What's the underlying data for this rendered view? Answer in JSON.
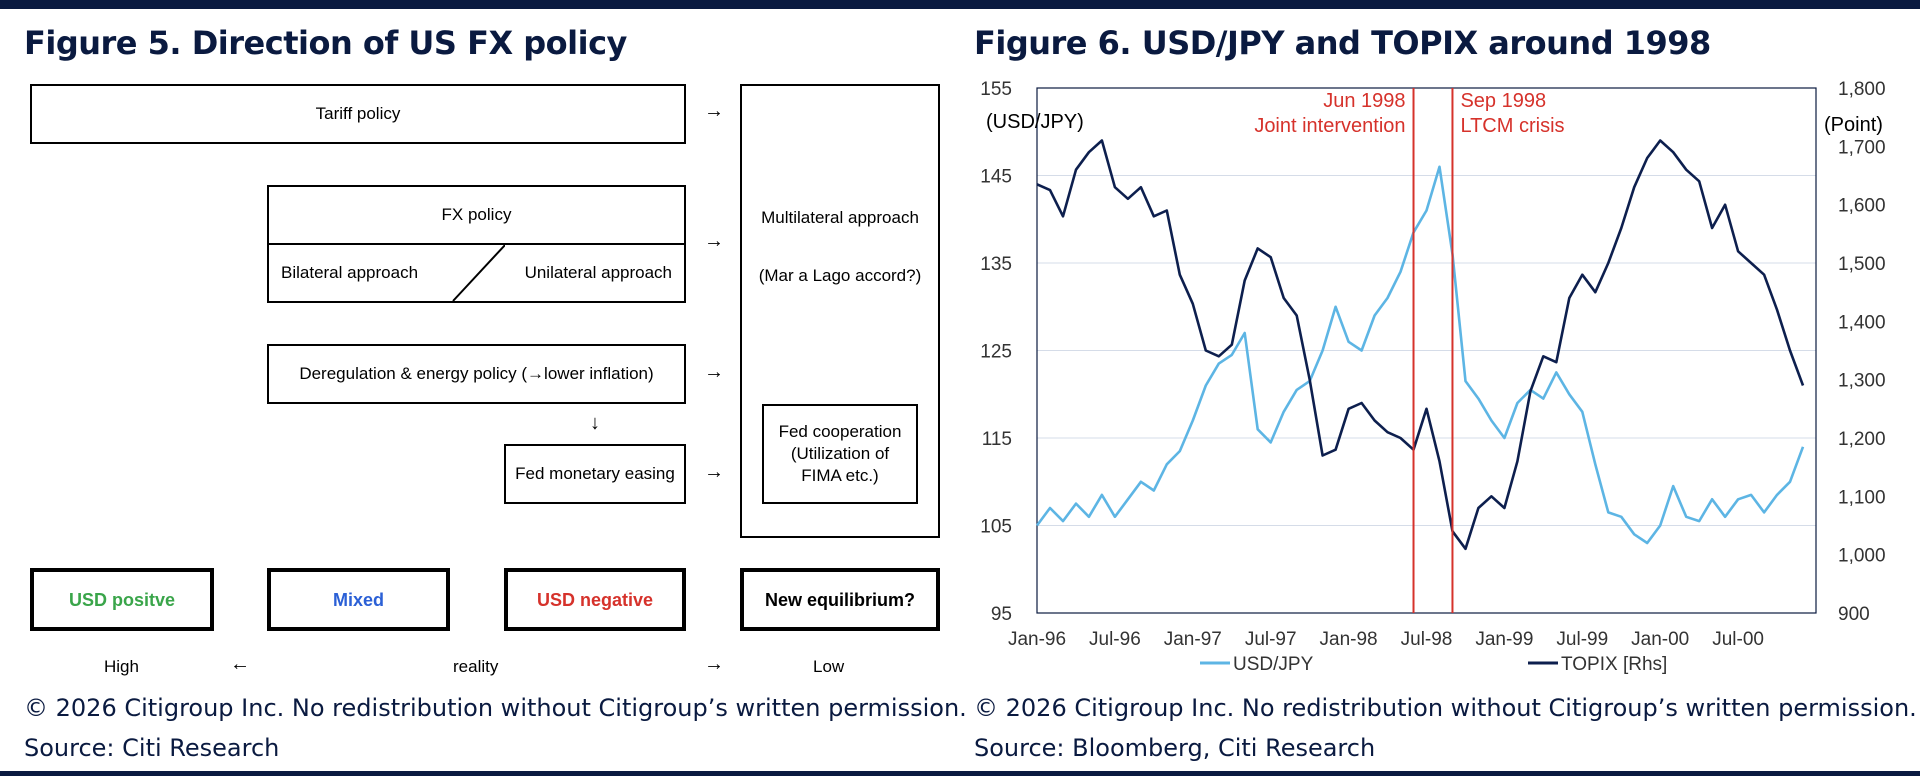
{
  "colors": {
    "navy": "#0a1a40",
    "usd_positive": "#3aa54a",
    "mixed": "#2b60d6",
    "usd_negative": "#d6322b",
    "usdjpy_line": "#5db5e4",
    "topix_line": "#0d1f4e",
    "event_line": "#d6322b"
  },
  "left": {
    "title": "Figure 5. Direction of US FX policy",
    "tariff": "Tariff policy",
    "fx_policy": "FX policy",
    "bilateral": "Bilateral approach",
    "unilateral": "Unilateral approach",
    "dereg": "Deregulation & energy policy (→lower inflation)",
    "down_arrow": "↓",
    "easing": "Fed monetary easing",
    "multilateral": "Multilateral approach",
    "mar_a_lago": "(Mar a Lago accord?)",
    "fed_coop": "Fed cooperation (Utilization of FIMA etc.)",
    "arrow": "→",
    "outcomes": {
      "positive": "USD positve",
      "mixed": "Mixed",
      "negative": "USD negative",
      "equilibrium": "New equilibrium?"
    },
    "reality": {
      "high": "High",
      "left_arrow": "←",
      "label": "reality",
      "right_arrow": "→",
      "low": "Low"
    },
    "copyright": "© 2026 Citigroup Inc. No redistribution without Citigroup’s written permission.",
    "source": "Source: Citi Research"
  },
  "right": {
    "title": "Figure 6. USD/JPY and TOPIX around 1998",
    "copyright": "© 2026 Citigroup Inc. No redistribution without Citigroup’s written permission.",
    "source": "Source: Bloomberg, Citi Research"
  },
  "chart_data": {
    "type": "line",
    "title": "Figure 6. USD/JPY and TOPIX around 1998",
    "ylabel_left": "(USD/JPY)",
    "ylabel_right": "(Point)",
    "x_start": "1996-01",
    "x_end": "2000-12",
    "x_ticks": [
      "Jan-96",
      "Jul-96",
      "Jan-97",
      "Jul-97",
      "Jan-98",
      "Jul-98",
      "Jan-99",
      "Jul-99",
      "Jan-00",
      "Jul-00"
    ],
    "y_left": {
      "min": 95,
      "max": 155,
      "ticks": [
        "95",
        "105",
        "115",
        "125",
        "135",
        "145",
        "155"
      ]
    },
    "y_right": {
      "min": 900,
      "max": 1800,
      "ticks": [
        "900",
        "1,000",
        "1,100",
        "1,200",
        "1,300",
        "1,400",
        "1,500",
        "1,600",
        "1,700",
        "1,800"
      ]
    },
    "grid": true,
    "legend_position": "bottom",
    "annotations": [
      {
        "date": "1998-06",
        "label_1": "Jun 1998",
        "label_2": "Joint intervention"
      },
      {
        "date": "1998-09",
        "label_1": "Sep 1998",
        "label_2": "LTCM crisis"
      }
    ],
    "series": [
      {
        "name": "USD/JPY",
        "axis": "left",
        "points": [
          [
            "1996-01",
            105
          ],
          [
            "1996-02",
            107
          ],
          [
            "1996-03",
            105.5
          ],
          [
            "1996-04",
            107.5
          ],
          [
            "1996-05",
            106
          ],
          [
            "1996-06",
            108.5
          ],
          [
            "1996-07",
            106
          ],
          [
            "1996-08",
            108
          ],
          [
            "1996-09",
            110
          ],
          [
            "1996-10",
            109
          ],
          [
            "1996-11",
            112
          ],
          [
            "1996-12",
            113.5
          ],
          [
            "1997-01",
            117
          ],
          [
            "1997-02",
            121
          ],
          [
            "1997-03",
            123.5
          ],
          [
            "1997-04",
            124.5
          ],
          [
            "1997-05",
            127
          ],
          [
            "1997-06",
            116
          ],
          [
            "1997-07",
            114.5
          ],
          [
            "1997-08",
            118
          ],
          [
            "1997-09",
            120.5
          ],
          [
            "1997-10",
            121.5
          ],
          [
            "1997-11",
            125
          ],
          [
            "1997-12",
            130
          ],
          [
            "1998-01",
            126
          ],
          [
            "1998-02",
            125
          ],
          [
            "1998-03",
            129
          ],
          [
            "1998-04",
            131
          ],
          [
            "1998-05",
            134
          ],
          [
            "1998-06",
            138.5
          ],
          [
            "1998-07",
            141
          ],
          [
            "1998-08",
            146
          ],
          [
            "1998-09",
            136
          ],
          [
            "1998-10",
            121.5
          ],
          [
            "1998-11",
            119.5
          ],
          [
            "1998-12",
            117
          ],
          [
            "1999-01",
            115
          ],
          [
            "1999-02",
            119
          ],
          [
            "1999-03",
            120.5
          ],
          [
            "1999-04",
            119.5
          ],
          [
            "1999-05",
            122.5
          ],
          [
            "1999-06",
            120
          ],
          [
            "1999-07",
            118
          ],
          [
            "1999-08",
            112
          ],
          [
            "1999-09",
            106.5
          ],
          [
            "1999-10",
            106
          ],
          [
            "1999-11",
            104
          ],
          [
            "1999-12",
            103
          ],
          [
            "2000-01",
            105
          ],
          [
            "2000-02",
            109.5
          ],
          [
            "2000-03",
            106
          ],
          [
            "2000-04",
            105.5
          ],
          [
            "2000-05",
            108
          ],
          [
            "2000-06",
            106
          ],
          [
            "2000-07",
            108
          ],
          [
            "2000-08",
            108.5
          ],
          [
            "2000-09",
            106.5
          ],
          [
            "2000-10",
            108.5
          ],
          [
            "2000-11",
            110
          ],
          [
            "2000-12",
            114
          ]
        ]
      },
      {
        "name": "TOPIX [Rhs]",
        "axis": "right",
        "points": [
          [
            "1996-01",
            1635
          ],
          [
            "1996-02",
            1625
          ],
          [
            "1996-03",
            1580
          ],
          [
            "1996-04",
            1660
          ],
          [
            "1996-05",
            1690
          ],
          [
            "1996-06",
            1710
          ],
          [
            "1996-07",
            1630
          ],
          [
            "1996-08",
            1610
          ],
          [
            "1996-09",
            1630
          ],
          [
            "1996-10",
            1580
          ],
          [
            "1996-11",
            1590
          ],
          [
            "1996-12",
            1480
          ],
          [
            "1997-01",
            1430
          ],
          [
            "1997-02",
            1350
          ],
          [
            "1997-03",
            1340
          ],
          [
            "1997-04",
            1360
          ],
          [
            "1997-05",
            1470
          ],
          [
            "1997-06",
            1525
          ],
          [
            "1997-07",
            1510
          ],
          [
            "1997-08",
            1440
          ],
          [
            "1997-09",
            1410
          ],
          [
            "1997-10",
            1300
          ],
          [
            "1997-11",
            1170
          ],
          [
            "1997-12",
            1180
          ],
          [
            "1998-01",
            1250
          ],
          [
            "1998-02",
            1260
          ],
          [
            "1998-03",
            1230
          ],
          [
            "1998-04",
            1210
          ],
          [
            "1998-05",
            1200
          ],
          [
            "1998-06",
            1180
          ],
          [
            "1998-07",
            1250
          ],
          [
            "1998-08",
            1160
          ],
          [
            "1998-09",
            1040
          ],
          [
            "1998-10",
            1010
          ],
          [
            "1998-11",
            1080
          ],
          [
            "1998-12",
            1100
          ],
          [
            "1999-01",
            1080
          ],
          [
            "1999-02",
            1160
          ],
          [
            "1999-03",
            1280
          ],
          [
            "1999-04",
            1340
          ],
          [
            "1999-05",
            1330
          ],
          [
            "1999-06",
            1440
          ],
          [
            "1999-07",
            1480
          ],
          [
            "1999-08",
            1450
          ],
          [
            "1999-09",
            1500
          ],
          [
            "1999-10",
            1560
          ],
          [
            "1999-11",
            1630
          ],
          [
            "1999-12",
            1680
          ],
          [
            "2000-01",
            1710
          ],
          [
            "2000-02",
            1690
          ],
          [
            "2000-03",
            1660
          ],
          [
            "2000-04",
            1640
          ],
          [
            "2000-05",
            1560
          ],
          [
            "2000-06",
            1600
          ],
          [
            "2000-07",
            1520
          ],
          [
            "2000-08",
            1500
          ],
          [
            "2000-09",
            1480
          ],
          [
            "2000-10",
            1420
          ],
          [
            "2000-11",
            1350
          ],
          [
            "2000-12",
            1290
          ]
        ]
      }
    ]
  }
}
